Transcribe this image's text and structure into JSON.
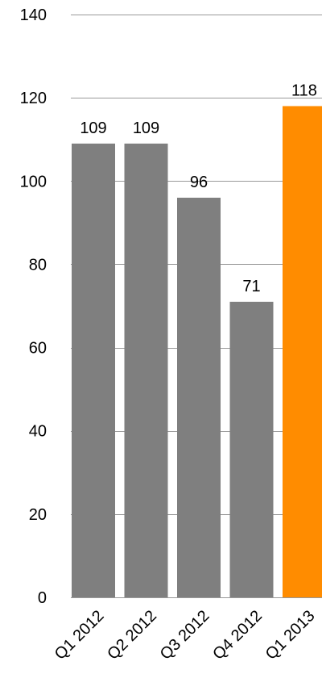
{
  "chart_data": {
    "type": "bar",
    "title": "",
    "xlabel": "",
    "ylabel": "",
    "categories": [
      "Q1 2012",
      "Q2 2012",
      "Q3 2012",
      "Q4 2012",
      "Q1 2013"
    ],
    "values": [
      109,
      109,
      96,
      71,
      118
    ],
    "data_labels": [
      "109",
      "109",
      "96",
      "71",
      "118"
    ],
    "ylim": [
      0,
      140
    ],
    "yticks": [
      0,
      20,
      40,
      60,
      80,
      100,
      120,
      140
    ],
    "ytick_labels": [
      "0",
      "20",
      "40",
      "60",
      "80",
      "100",
      "120",
      "140"
    ],
    "grid": true,
    "legend": "none",
    "colors": {
      "default_bar": "#7f7f7f",
      "highlight_bar": "#ff8c00",
      "grid": "#999999"
    },
    "highlight_index": 4
  }
}
